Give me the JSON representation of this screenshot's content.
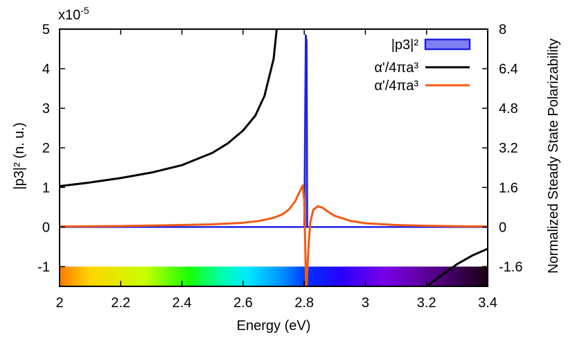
{
  "chart_data": {
    "type": "line",
    "xlabel": "Energy (eV)",
    "ylabel_left": "|p3|² (n. u.)",
    "ylabel_right": "Normalized Steady State Polarizability",
    "exponent_label": "x10",
    "exponent_power": "-5",
    "xlim": [
      2.0,
      3.4
    ],
    "ylim_left": [
      -1.5,
      5
    ],
    "ylim_right": [
      -2.4,
      8
    ],
    "x_ticks": [
      2,
      2.2,
      2.4,
      2.6,
      2.8,
      3,
      3.2,
      3.4
    ],
    "x_tick_labels": [
      "2",
      "2.2",
      "2.4",
      "2.6",
      "2.8",
      "3",
      "3.2",
      "3.4"
    ],
    "y_left_ticks": [
      -1,
      0,
      1,
      2,
      3,
      4,
      5
    ],
    "y_left_tick_labels": [
      "-1",
      "0",
      "1",
      "2",
      "3",
      "4",
      "5"
    ],
    "y_right_ticks": [
      -1.6,
      0,
      1.6,
      3.2,
      4.8,
      6.4,
      8
    ],
    "y_right_tick_labels": [
      "-1.6",
      "0",
      "1.6",
      "3.2",
      "4.8",
      "6.4",
      "8"
    ],
    "legend_position": "top-right",
    "series": [
      {
        "name": "|p3|²",
        "style": "filled",
        "color": "#2020e0",
        "fill": "#8080f0",
        "axis": "left",
        "x": [
          2.0,
          2.79,
          2.8,
          2.805,
          2.808,
          2.81,
          2.82,
          3.4
        ],
        "y": [
          0.0,
          0.0,
          0.0,
          4.85,
          4.7,
          0.0,
          0.0,
          0.0
        ]
      },
      {
        "name": "α'/4πa³",
        "color": "#000000",
        "axis": "right",
        "x": [
          2.0,
          2.1,
          2.2,
          2.3,
          2.4,
          2.5,
          2.55,
          2.6,
          2.64,
          2.67,
          2.7,
          2.71,
          3.2,
          3.25,
          3.3,
          3.35,
          3.4
        ],
        "y": [
          1.65,
          1.8,
          1.98,
          2.2,
          2.5,
          3.0,
          3.38,
          3.9,
          4.5,
          5.3,
          6.8,
          8.0,
          -2.4,
          -1.95,
          -1.5,
          -1.15,
          -0.88
        ]
      },
      {
        "name": "α'/4πa³",
        "color": "#f05a14",
        "axis": "right",
        "x": [
          2.0,
          2.2,
          2.4,
          2.5,
          2.6,
          2.65,
          2.7,
          2.73,
          2.75,
          2.77,
          2.785,
          2.795,
          2.8,
          2.803,
          2.806,
          2.808,
          2.81,
          2.815,
          2.82,
          2.83,
          2.845,
          2.86,
          2.88,
          2.9,
          2.95,
          3.0,
          3.1,
          3.2,
          3.3,
          3.4
        ],
        "y": [
          0.02,
          0.04,
          0.08,
          0.11,
          0.17,
          0.24,
          0.37,
          0.52,
          0.71,
          1.03,
          1.42,
          1.68,
          1.1,
          -0.6,
          -2.4,
          -2.4,
          -1.8,
          -0.6,
          0.2,
          0.7,
          0.84,
          0.78,
          0.6,
          0.45,
          0.25,
          0.15,
          0.08,
          0.05,
          0.03,
          0.02
        ]
      }
    ]
  }
}
